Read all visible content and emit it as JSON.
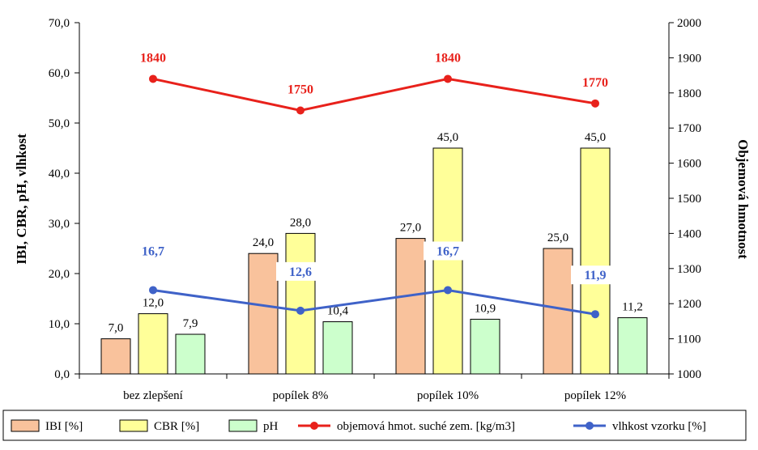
{
  "chart_data": {
    "type": "bar",
    "categories": [
      "bez zlepšení",
      "popílek 8%",
      "popílek 10%",
      "popílek 12%"
    ],
    "series": [
      {
        "name": "IBI [%]",
        "type": "bar",
        "axis": "left",
        "color": "#f9c29c",
        "values": [
          7.0,
          24.0,
          27.0,
          25.0
        ],
        "labels": [
          "7,0",
          "24,0",
          "27,0",
          "25,0"
        ]
      },
      {
        "name": "CBR [%]",
        "type": "bar",
        "axis": "left",
        "color": "#ffff99",
        "values": [
          12.0,
          28.0,
          45.0,
          45.0
        ],
        "labels": [
          "12,0",
          "28,0",
          "45,0",
          "45,0"
        ]
      },
      {
        "name": "pH",
        "type": "bar",
        "axis": "left",
        "color": "#ccffcc",
        "values": [
          7.9,
          10.4,
          10.9,
          11.2
        ],
        "labels": [
          "7,9",
          "10,4",
          "10,9",
          "11,2"
        ]
      },
      {
        "name": "objemová hmot. suché zem. [kg/m3]",
        "type": "line",
        "axis": "right",
        "color": "#e8211b",
        "values": [
          1840,
          1750,
          1840,
          1770
        ],
        "labels": [
          "1840",
          "1750",
          "1840",
          "1770"
        ]
      },
      {
        "name": "vlhkost vzorku [%]",
        "type": "line",
        "axis": "left",
        "color": "#3f62c8",
        "values": [
          16.7,
          12.6,
          16.7,
          11.9
        ],
        "labels": [
          "16,7",
          "12,6",
          "16,7",
          "11,9"
        ]
      }
    ],
    "ylabel": "IBI, CBR, pH, vlhkost",
    "y2label": "Objemová hmotnost",
    "ylim": [
      0,
      70
    ],
    "y2lim": [
      1000,
      2000
    ],
    "yticks": [
      "0,0",
      "10,0",
      "20,0",
      "30,0",
      "40,0",
      "50,0",
      "60,0",
      "70,0"
    ],
    "y2ticks": [
      "1000",
      "1100",
      "1200",
      "1300",
      "1400",
      "1500",
      "1600",
      "1700",
      "1800",
      "1900",
      "2000"
    ],
    "grid": false,
    "legend": "bottom"
  }
}
